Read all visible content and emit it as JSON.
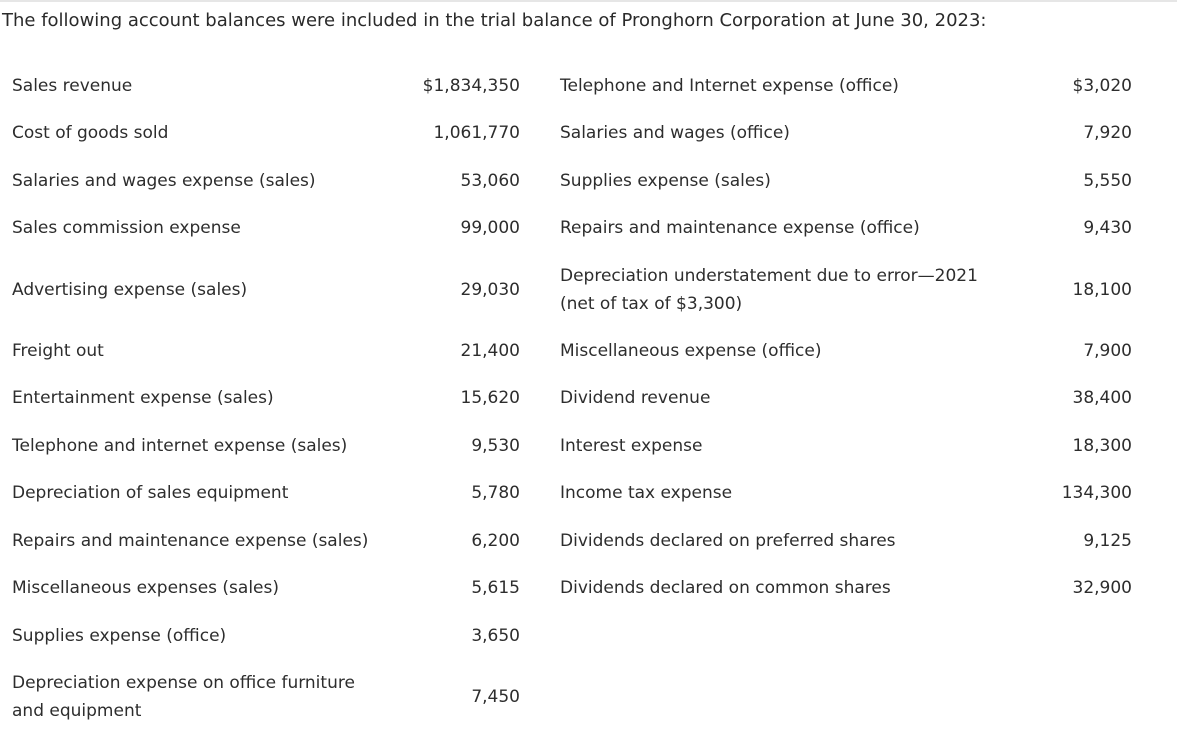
{
  "intro": "The following account balances were included in the trial balance of Pronghorn Corporation at June 30, 2023:",
  "left_items": [
    {
      "label": "Sales revenue",
      "amount": "$1,834,350"
    },
    {
      "label": "Cost of goods sold",
      "amount": "1,061,770"
    },
    {
      "label": "Salaries and wages expense (sales)",
      "amount": "53,060"
    },
    {
      "label": "Sales commission expense",
      "amount": "99,000"
    },
    {
      "label": "Advertising expense (sales)",
      "amount": "29,030"
    },
    {
      "label": "Freight out",
      "amount": "21,400"
    },
    {
      "label": "Entertainment expense (sales)",
      "amount": "15,620"
    },
    {
      "label": "Telephone and internet expense (sales)",
      "amount": "9,530"
    },
    {
      "label": "Depreciation of sales equipment",
      "amount": "5,780"
    },
    {
      "label": "Repairs and maintenance expense (sales)",
      "amount": "6,200"
    },
    {
      "label": "Miscellaneous expenses (sales)",
      "amount": "5,615"
    },
    {
      "label": "Supplies expense (office)",
      "amount": "3,650"
    },
    {
      "label": "Depreciation expense on office furniture and equipment",
      "amount": "7,450"
    }
  ],
  "right_items": [
    {
      "label": "Telephone and Internet expense (office)",
      "amount": "$3,020"
    },
    {
      "label": "Salaries and wages (office)",
      "amount": "7,920"
    },
    {
      "label": "Supplies expense (sales)",
      "amount": "5,550"
    },
    {
      "label": "Repairs and maintenance expense (office)",
      "amount": "9,430"
    },
    {
      "label": "Depreciation understatement due to error—2021 (net of tax of $3,300)",
      "amount": "18,100"
    },
    {
      "label": "Miscellaneous expense (office)",
      "amount": "7,900"
    },
    {
      "label": "Dividend revenue",
      "amount": "38,400"
    },
    {
      "label": "Interest expense",
      "amount": "18,300"
    },
    {
      "label": "Income tax expense",
      "amount": "134,300"
    },
    {
      "label": "Dividends declared on preferred shares",
      "amount": "9,125"
    },
    {
      "label": "Dividends declared on common shares",
      "amount": "32,900"
    }
  ]
}
